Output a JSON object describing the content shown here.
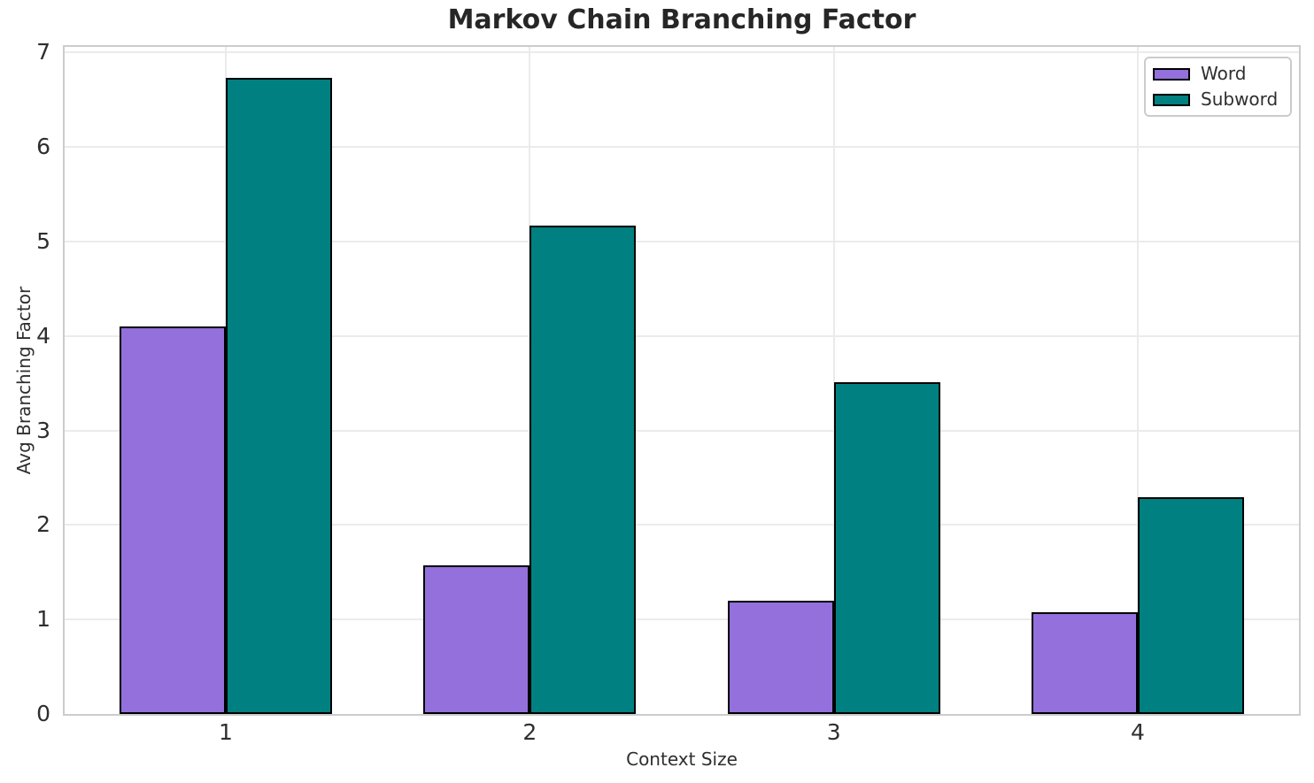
{
  "figure": {
    "background": "#ffffff",
    "text_color": "#2e2e2e"
  },
  "chart_data": {
    "type": "bar",
    "title": "Markov Chain Branching Factor",
    "xlabel": "Context Size",
    "ylabel": "Avg Branching Factor",
    "categories": [
      "1",
      "2",
      "3",
      "4"
    ],
    "series": [
      {
        "name": "Word",
        "color": "#9370DB",
        "values": [
          4.1,
          1.57,
          1.2,
          1.08
        ]
      },
      {
        "name": "Subword",
        "color": "#008080",
        "values": [
          6.73,
          5.17,
          3.51,
          2.29
        ]
      }
    ],
    "ylim": [
      0,
      7.06
    ],
    "yticks": [
      0,
      1,
      2,
      3,
      4,
      5,
      6,
      7
    ],
    "grid": true,
    "gridline_color": "#ebebeb",
    "spine_color": "#cccccc",
    "bar_edge_color": "#000000",
    "legend_position": "upper right"
  }
}
